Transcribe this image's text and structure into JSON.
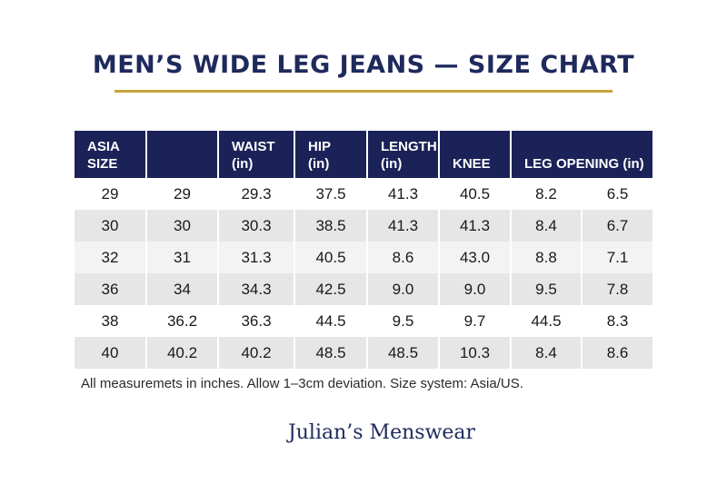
{
  "title": "MEN’S WIDE LEG JEANS — SIZE CHART",
  "header": {
    "c0_l1": "ASIA",
    "c0_l2": "SIZE",
    "c1": "",
    "c2_l1": "WAIST",
    "c2_l2": "(in)",
    "c3_l1": "HIP",
    "c3_l2": "(in)",
    "c4_l1": "LENGTH",
    "c4_l2": "(in)",
    "c5": "KNEE",
    "c6": "LEG OPENING (in)"
  },
  "rows": [
    [
      "29",
      "29",
      "29.3",
      "37.5",
      "41.3",
      "40.5",
      "8.2",
      "6.5"
    ],
    [
      "30",
      "30",
      "30.3",
      "38.5",
      "41.3",
      "41.3",
      "8.4",
      "6.7"
    ],
    [
      "32",
      "31",
      "31.3",
      "40.5",
      "8.6",
      "43.0",
      "8.8",
      "7.1"
    ],
    [
      "36",
      "34",
      "34.3",
      "42.5",
      "9.0",
      "9.0",
      "9.5",
      "7.8"
    ],
    [
      "38",
      "36.2",
      "36.3",
      "44.5",
      "9.5",
      "9.7",
      "44.5",
      "8.3"
    ],
    [
      "40",
      "40.2",
      "40.2",
      "48.5",
      "48.5",
      "10.3",
      "8.4",
      "8.6"
    ]
  ],
  "footnote": "All measuremets in inches. Allow 1–3cm deviation. Size system: Asia/US.",
  "brand": "Julian’s Menswear",
  "colors": {
    "header_bg": "#1b2258",
    "title": "#1f2a5c",
    "accent_rule": "#c9a23c",
    "stripe": "#e6e6e6"
  }
}
